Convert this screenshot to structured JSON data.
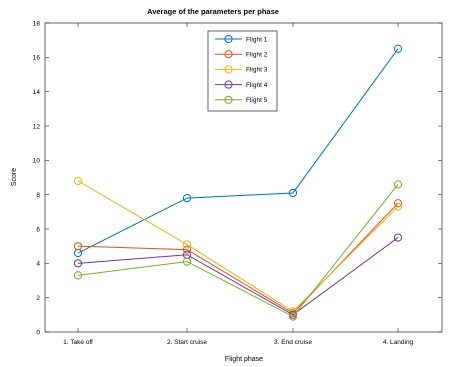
{
  "chart_data": {
    "type": "line",
    "title": "Average of the parameters per phase",
    "xlabel": "Flight phase",
    "ylabel": "Score",
    "categories": [
      "1. Take off",
      "2. Start cruise",
      "3. End cruise",
      "4. Landing"
    ],
    "ylim": [
      0,
      18
    ],
    "yticks": [
      "0",
      "2",
      "4",
      "6",
      "8",
      "10",
      "12",
      "14",
      "16",
      "18"
    ],
    "grid": false,
    "legend_position": "top-center",
    "series": [
      {
        "name": "Flight 1",
        "color": "#0072BD",
        "values": [
          4.6,
          7.8,
          8.1,
          16.5
        ]
      },
      {
        "name": "Flight 2",
        "color": "#D95319",
        "values": [
          5.0,
          4.8,
          1.1,
          7.5
        ]
      },
      {
        "name": "Flight 3",
        "color": "#EDB120",
        "values": [
          8.8,
          5.1,
          1.2,
          7.3
        ]
      },
      {
        "name": "Flight 4",
        "color": "#7E2F8E",
        "values": [
          4.0,
          4.5,
          1.0,
          5.5
        ]
      },
      {
        "name": "Flight 5",
        "color": "#77AC30",
        "values": [
          3.3,
          4.1,
          0.9,
          8.6
        ]
      }
    ]
  }
}
